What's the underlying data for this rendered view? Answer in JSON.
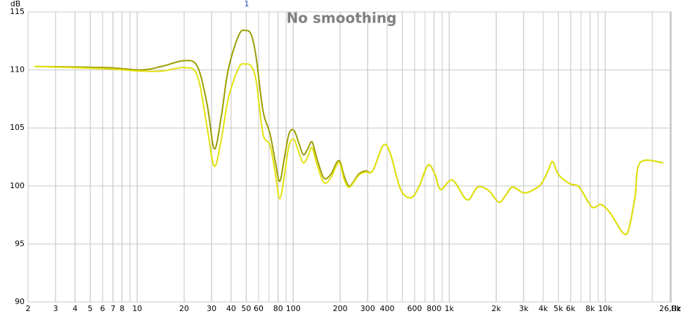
{
  "chart_data": {
    "type": "line",
    "title": "No smoothing",
    "y_label": "dB",
    "x_unit": "Hz",
    "marker_label": "1",
    "x": [
      2.2,
      6.3,
      10.5,
      14.3,
      20,
      24.3,
      28.1,
      31.2,
      34.6,
      38.3,
      44.8,
      49.6,
      54,
      58,
      64,
      71,
      77,
      82,
      88,
      94,
      101,
      108,
      116,
      124,
      132,
      141,
      157,
      174,
      196,
      213,
      230,
      262,
      290,
      323,
      378,
      419,
      488,
      570,
      643,
      731,
      810,
      880,
      1050,
      1300,
      1520,
      1790,
      2080,
      2300,
      2550,
      3000,
      3500,
      3900,
      4300,
      4600,
      5000,
      5900,
      6800,
      8200,
      9400,
      10700,
      11800,
      13100,
      14100,
      15500,
      16700,
      23500
    ],
    "series": [
      {
        "color": "#9c9c00",
        "values": [
          110.3,
          110.2,
          110.0,
          110.3,
          110.8,
          110.3,
          107,
          103.2,
          106,
          110,
          113,
          113.4,
          113,
          111,
          106.5,
          104.5,
          102,
          100.4,
          102.5,
          104.5,
          104.8,
          103.8,
          102.7,
          103.2,
          103.8,
          102.5,
          100.7,
          101,
          102.2,
          100.8,
          100,
          101.0,
          101.3,
          101.3,
          103.5,
          102.8,
          99.7,
          99,
          100,
          101.8,
          101.0,
          99.7,
          100.5,
          98.8,
          99.9,
          99.6,
          98.6,
          99.2,
          99.9,
          99.4,
          99.7,
          100.2,
          101.3,
          102.1,
          101,
          100.2,
          99.9,
          98.2,
          98.4,
          97.7,
          96.8,
          95.9,
          96.2,
          99,
          102,
          102
        ]
      },
      {
        "color": "#e2e20a",
        "values": [
          110.3,
          110.1,
          109.9,
          109.9,
          110.2,
          109.5,
          105,
          101.7,
          104,
          107.5,
          110.2,
          110.5,
          110.3,
          109,
          104.5,
          103.5,
          101,
          98.9,
          101,
          103.5,
          104,
          103,
          102,
          102.5,
          103.3,
          102,
          100.3,
          100.7,
          102,
          100.5,
          99.9,
          100.9,
          101.2,
          101.3,
          103.5,
          102.8,
          99.7,
          99,
          100,
          101.8,
          101.0,
          99.7,
          100.5,
          98.8,
          99.9,
          99.6,
          98.6,
          99.2,
          99.9,
          99.4,
          99.7,
          100.2,
          101.3,
          102.1,
          101,
          100.2,
          99.9,
          98.2,
          98.4,
          97.7,
          96.8,
          95.9,
          96.2,
          99,
          102,
          102
        ]
      }
    ],
    "log_x": true,
    "grid": true,
    "xlim": [
      2,
      26400
    ],
    "ylim": [
      90,
      115
    ],
    "yticks": [
      90,
      95,
      100,
      105,
      110,
      115
    ],
    "xticks": [
      2,
      3,
      4,
      5,
      6,
      7,
      8,
      10,
      20,
      30,
      40,
      50,
      60,
      80,
      100,
      200,
      300,
      400,
      600,
      800,
      {
        "value": 1000,
        "label": "1k"
      },
      {
        "value": 2000,
        "label": "2k"
      },
      {
        "value": 3000,
        "label": "3k"
      },
      {
        "value": 4000,
        "label": "4k"
      },
      {
        "value": 5000,
        "label": "5k"
      },
      {
        "value": 6000,
        "label": "6k"
      },
      {
        "value": 8000,
        "label": "8k"
      },
      {
        "value": 10000,
        "label": "10k"
      },
      {
        "value": 26000,
        "label": "26,0k"
      }
    ]
  }
}
